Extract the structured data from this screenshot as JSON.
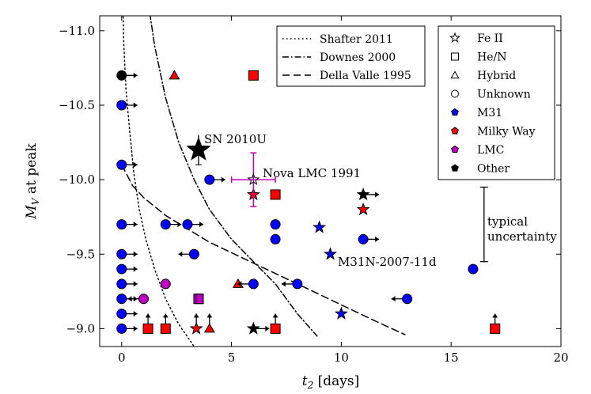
{
  "chart_data": {
    "type": "scatter",
    "xlabel": "t2 [days]",
    "ylabel": "MV at peak",
    "xlim": [
      -1,
      20
    ],
    "ylim": [
      -8.88,
      -11.1
    ],
    "x_ticks": [
      0,
      5,
      10,
      15,
      20
    ],
    "x_tick_labels": [
      "0",
      "5",
      "10",
      "15",
      "20"
    ],
    "y_ticks": [
      -11.0,
      -10.5,
      -10.0,
      -9.5,
      -9.0
    ],
    "y_tick_labels": [
      "−11.0",
      "−10.5",
      "−10.0",
      "−9.5",
      "−9.0"
    ],
    "colors": {
      "M31": "#0000ff",
      "Milky Way": "#ff0000",
      "LMC": "#c000c0",
      "Other": "#000000",
      "errorbar": "#c000c0"
    },
    "legend_lines": [
      {
        "label": "Shafter 2011",
        "style": "dotted"
      },
      {
        "label": "Downes 2000",
        "style": "dashdot"
      },
      {
        "label": "Della Valle 1995",
        "style": "dashed"
      }
    ],
    "legend_markers": [
      {
        "label": "Fe II",
        "shape": "star",
        "filled": false
      },
      {
        "label": "He/N",
        "shape": "square",
        "filled": false
      },
      {
        "label": "Hybrid",
        "shape": "triangle",
        "filled": false
      },
      {
        "label": "Unknown",
        "shape": "circle",
        "filled": false
      },
      {
        "label": "M31",
        "shape": "pentagon",
        "color": "#0000ff"
      },
      {
        "label": "Milky Way",
        "shape": "pentagon",
        "color": "#ff0000"
      },
      {
        "label": "LMC",
        "shape": "pentagon",
        "color": "#c000c0"
      },
      {
        "label": "Other",
        "shape": "pentagon",
        "color": "#000000"
      }
    ],
    "curves": [
      {
        "name": "Shafter 2011",
        "style": "dotted",
        "points": [
          [
            0.05,
            -11.2
          ],
          [
            0.1,
            -10.9
          ],
          [
            0.2,
            -10.6
          ],
          [
            0.35,
            -10.35
          ],
          [
            0.55,
            -10.05
          ],
          [
            0.8,
            -9.8
          ],
          [
            1.1,
            -9.6
          ],
          [
            1.5,
            -9.4
          ],
          [
            2.0,
            -9.2
          ],
          [
            2.6,
            -9.03
          ],
          [
            3.3,
            -8.88
          ]
        ]
      },
      {
        "name": "Downes 2000",
        "style": "dashdot",
        "points": [
          [
            1.2,
            -11.2
          ],
          [
            1.5,
            -10.9
          ],
          [
            2.0,
            -10.55
          ],
          [
            2.6,
            -10.25
          ],
          [
            3.3,
            -10.0
          ],
          [
            4.0,
            -9.8
          ],
          [
            5.0,
            -9.6
          ],
          [
            6.0,
            -9.45
          ],
          [
            7.0,
            -9.3
          ],
          [
            8.0,
            -9.1
          ],
          [
            8.9,
            -8.95
          ]
        ]
      },
      {
        "name": "Della Valle 1995",
        "style": "dashed",
        "points": [
          [
            0,
            -10.1
          ],
          [
            0.5,
            -9.96
          ],
          [
            1,
            -9.88
          ],
          [
            2,
            -9.76
          ],
          [
            3,
            -9.67
          ],
          [
            4,
            -9.58
          ],
          [
            5,
            -9.51
          ],
          [
            6,
            -9.44
          ],
          [
            7,
            -9.37
          ],
          [
            8,
            -9.3
          ],
          [
            9,
            -9.23
          ],
          [
            10,
            -9.16
          ],
          [
            11,
            -9.09
          ],
          [
            12,
            -9.02
          ],
          [
            12.9,
            -8.96
          ]
        ]
      }
    ],
    "points": [
      {
        "t2": 0,
        "mv": -10.7,
        "shape": "circle",
        "color": "#000000",
        "arrow": "right"
      },
      {
        "t2": 0,
        "mv": -10.5,
        "shape": "circle",
        "color": "#0000ff",
        "arrow": "right"
      },
      {
        "t2": 0,
        "mv": -10.1,
        "shape": "circle",
        "color": "#0000ff",
        "arrow": "right"
      },
      {
        "t2": 0,
        "mv": -9.7,
        "shape": "circle",
        "color": "#0000ff",
        "arrow": "right"
      },
      {
        "t2": 0,
        "mv": -9.5,
        "shape": "circle",
        "color": "#0000ff",
        "arrow": "right"
      },
      {
        "t2": 0,
        "mv": -9.4,
        "shape": "circle",
        "color": "#0000ff",
        "arrow": "right"
      },
      {
        "t2": 0,
        "mv": -9.3,
        "shape": "circle",
        "color": "#0000ff",
        "arrow": "right"
      },
      {
        "t2": 0,
        "mv": -9.2,
        "shape": "circle",
        "color": "#0000ff",
        "arrow": "right"
      },
      {
        "t2": 0,
        "mv": -9.1,
        "shape": "circle",
        "color": "#0000ff",
        "arrow": "right"
      },
      {
        "t2": 0,
        "mv": -9.0,
        "shape": "circle",
        "color": "#0000ff",
        "arrow": "right"
      },
      {
        "t2": 2.4,
        "mv": -10.7,
        "shape": "triangle",
        "color": "#ff0000"
      },
      {
        "t2": 6.0,
        "mv": -10.7,
        "shape": "square",
        "color": "#ff0000"
      },
      {
        "t2": 4.0,
        "mv": -10.0,
        "shape": "circle",
        "color": "#0000ff",
        "arrow": "right"
      },
      {
        "t2": 6.0,
        "mv": -9.9,
        "shape": "star",
        "color": "#ff0000"
      },
      {
        "t2": 7.0,
        "mv": -9.9,
        "shape": "square",
        "color": "#ff0000"
      },
      {
        "t2": 11.0,
        "mv": -9.9,
        "shape": "star",
        "color": "#000000",
        "arrow": "right"
      },
      {
        "t2": 11.0,
        "mv": -9.8,
        "shape": "star",
        "color": "#ff0000"
      },
      {
        "t2": 2.0,
        "mv": -9.7,
        "shape": "circle",
        "color": "#0000ff",
        "arrow": "right"
      },
      {
        "t2": 3.0,
        "mv": -9.7,
        "shape": "circle",
        "color": "#0000ff",
        "arrow": "right"
      },
      {
        "t2": 7.0,
        "mv": -9.7,
        "shape": "circle",
        "color": "#0000ff"
      },
      {
        "t2": 9.0,
        "mv": -9.68,
        "shape": "star",
        "color": "#0000ff"
      },
      {
        "t2": 7.0,
        "mv": -9.6,
        "shape": "circle",
        "color": "#0000ff"
      },
      {
        "t2": 11.0,
        "mv": -9.6,
        "shape": "circle",
        "color": "#0000ff",
        "arrow": "right"
      },
      {
        "t2": 3.3,
        "mv": -9.5,
        "shape": "circle",
        "color": "#0000ff",
        "arrow": "left"
      },
      {
        "t2": 9.5,
        "mv": -9.5,
        "shape": "star",
        "color": "#0000ff"
      },
      {
        "t2": 16.0,
        "mv": -9.4,
        "shape": "circle",
        "color": "#0000ff"
      },
      {
        "t2": 2.0,
        "mv": -9.3,
        "shape": "circle",
        "color": "#c000c0"
      },
      {
        "t2": 5.3,
        "mv": -9.3,
        "shape": "triangle",
        "color": "#ff0000"
      },
      {
        "t2": 6.0,
        "mv": -9.3,
        "shape": "circle",
        "color": "#0000ff",
        "arrow": "left"
      },
      {
        "t2": 8.0,
        "mv": -9.3,
        "shape": "circle",
        "color": "#0000ff",
        "arrow": "left"
      },
      {
        "t2": 1.0,
        "mv": -9.2,
        "shape": "circle",
        "color": "#c000c0",
        "arrow": "left"
      },
      {
        "t2": 3.5,
        "mv": -9.2,
        "shape": "square",
        "color": "#c000c0",
        "outline": true
      },
      {
        "t2": 13.0,
        "mv": -9.2,
        "shape": "circle",
        "color": "#0000ff",
        "arrow": "left"
      },
      {
        "t2": 10.0,
        "mv": -9.1,
        "shape": "star",
        "color": "#0000ff"
      },
      {
        "t2": 1.2,
        "mv": -9.0,
        "shape": "square",
        "color": "#ff0000",
        "arrow": "up"
      },
      {
        "t2": 2.0,
        "mv": -9.0,
        "shape": "square",
        "color": "#ff0000",
        "arrow": "up"
      },
      {
        "t2": 3.4,
        "mv": -9.0,
        "shape": "star",
        "color": "#ff0000",
        "arrow": "up"
      },
      {
        "t2": 4.0,
        "mv": -9.0,
        "shape": "triangle",
        "color": "#ff0000",
        "arrow": "up"
      },
      {
        "t2": 6.0,
        "mv": -9.0,
        "shape": "star",
        "color": "#000000",
        "arrow": "right"
      },
      {
        "t2": 7.0,
        "mv": -9.0,
        "shape": "square",
        "color": "#ff0000",
        "arrow": "up"
      },
      {
        "t2": 17.0,
        "mv": -9.0,
        "shape": "square",
        "color": "#ff0000",
        "arrow": "up"
      }
    ],
    "highlights": [
      {
        "name": "SN 2010U",
        "t2": 3.5,
        "mv": -10.2,
        "err": 0.1,
        "label": "SN 2010U"
      },
      {
        "name": "Nova LMC 1991",
        "t2": 6.0,
        "mv": -10.0,
        "xerr": 1.0,
        "yerr": 0.18,
        "label": "Nova LMC 1991"
      }
    ],
    "annotations": [
      {
        "text": "M31N-2007-11d",
        "t2": 9.5,
        "mv": -9.5
      }
    ],
    "uncertainty": {
      "label_line1": "typical",
      "label_line2": "uncertainty",
      "t2": 16.5,
      "mv_top": -9.95,
      "mv_bottom": -9.45
    }
  }
}
